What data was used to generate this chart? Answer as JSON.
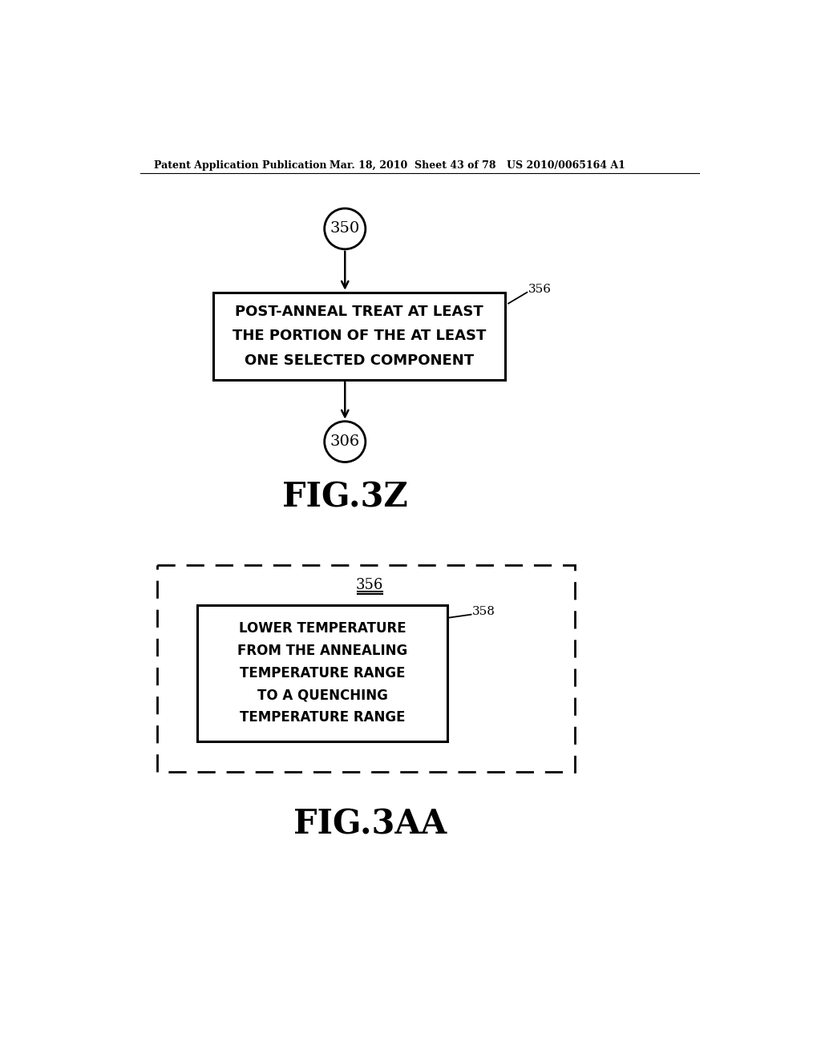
{
  "bg_color": "#ffffff",
  "header_line1": "Patent Application Publication",
  "header_line2": "Mar. 18, 2010  Sheet 43 of 78",
  "header_line3": "US 2010/0065164 A1",
  "fig3z": {
    "title": "FIG.3Z",
    "circle_top_label": "350",
    "circle_bottom_label": "306",
    "box_label": "356",
    "box_lines": [
      "POST-ANNEAL TREAT AT LEAST",
      "THE PORTION OF THE AT LEAST",
      "ONE SELECTED COMPONENT"
    ]
  },
  "fig3aa": {
    "title": "FIG.3AA",
    "outer_box_label": "356",
    "inner_box_label": "358",
    "inner_box_lines": [
      "LOWER TEMPERATURE",
      "FROM THE ANNEALING",
      "TEMPERATURE RANGE",
      "TO A QUENCHING",
      "TEMPERATURE RANGE"
    ]
  }
}
